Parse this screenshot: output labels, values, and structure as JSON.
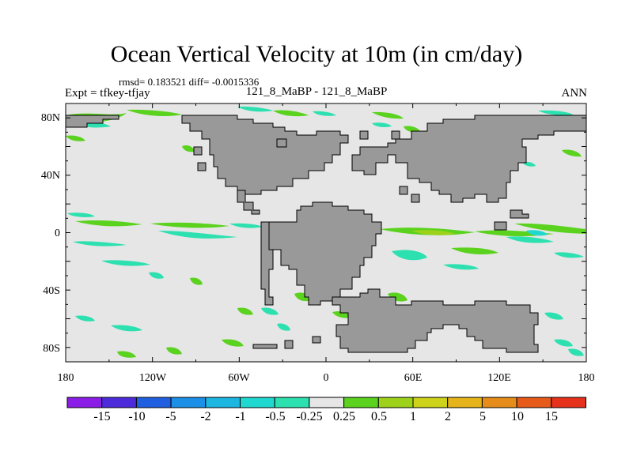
{
  "title": "Ocean Vertical Velocity at 10m (in cm/day)",
  "stats": "rmsd= 0.183521 diff= -0.0015336",
  "expt": "Expt = tfkey-tfjay",
  "case": "121_8_MaBP - 121_8_MaBP",
  "season": "ANN",
  "lon_ticks": [
    "180",
    "120W",
    "60W",
    "0",
    "60E",
    "120E",
    "180"
  ],
  "lat_ticks": [
    "80N",
    "40N",
    "0",
    "40S",
    "80S"
  ],
  "colorbar": {
    "labels": [
      "-15",
      "-10",
      "-5",
      "-2",
      "-1",
      "-0.5",
      "-0.25",
      "0.25",
      "0.5",
      "1",
      "2",
      "5",
      "10",
      "15"
    ],
    "colors": [
      "#8a1ee6",
      "#4d2bdb",
      "#1f5fe0",
      "#1c8fe6",
      "#1cb6e0",
      "#1fd8d0",
      "#2de0b0",
      "#e6e6e6",
      "#5ad21e",
      "#9ed21a",
      "#cdd21a",
      "#e6b41a",
      "#e68c1a",
      "#e65a1a",
      "#e6321a"
    ]
  },
  "colors": {
    "land": "#999999",
    "ocean_background": "#e6e6e6"
  }
}
